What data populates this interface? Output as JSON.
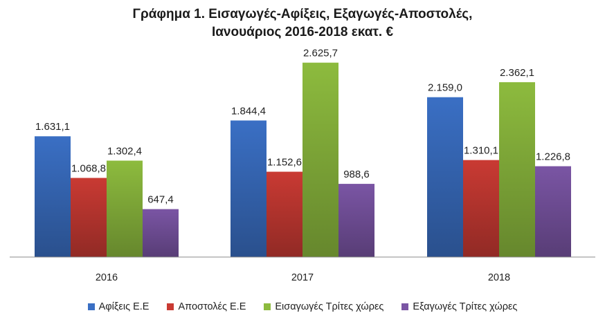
{
  "chart_data": {
    "type": "bar",
    "title": "Γράφημα 1. Εισαγωγές-Αφίξεις, Εξαγωγές-Αποστολές,",
    "subtitle": "Ιανουάριος 2016-2018 εκατ. €",
    "categories": [
      "2016",
      "2017",
      "2018"
    ],
    "series": [
      {
        "name": "Αφίξεις Ε.Ε",
        "color": "#3a6fc4",
        "values": [
          1631.1,
          1844.4,
          2159.0
        ],
        "labels": [
          "1.631,1",
          "1.844,4",
          "2.159,0"
        ]
      },
      {
        "name": "Αποστολές  Ε.Ε",
        "color": "#c93a33",
        "values": [
          1068.8,
          1152.6,
          1310.1
        ],
        "labels": [
          "1.068,8",
          "1.152,6",
          "1.310,1"
        ]
      },
      {
        "name": "Εισαγωγές Τρίτες χώρες",
        "color": "#8dbb3e",
        "values": [
          1302.4,
          2625.7,
          2362.1
        ],
        "labels": [
          "1.302,4",
          "2.625,7",
          "2.362,1"
        ]
      },
      {
        "name": "Εξαγωγές Τρίτες χώρες",
        "color": "#7a55a4",
        "values": [
          647.4,
          988.6,
          1226.8
        ],
        "labels": [
          "647,4",
          "988,6",
          "1.226,8"
        ]
      }
    ],
    "ylim": [
      0,
      2800
    ],
    "grid": false,
    "legend": "bottom",
    "xlabel": "",
    "ylabel": ""
  }
}
